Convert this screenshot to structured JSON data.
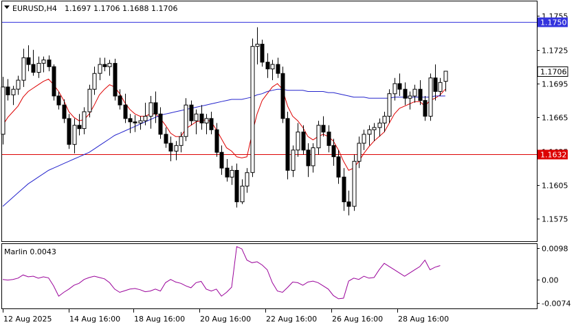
{
  "header": {
    "symbol": "EURUSD,H4",
    "open": "1.1697",
    "high": "1.1706",
    "low": "1.1688",
    "close": "1.1706",
    "menu_icon": "triangle-down-icon"
  },
  "chart_data": [
    {
      "type": "candlestick",
      "title": "EURUSD,H4",
      "ylim": [
        1.1555,
        1.1768
      ],
      "yticks": [
        "1.1755",
        "1.1725",
        "1.1695",
        "1.1665",
        "1.1635",
        "1.1605",
        "1.1575"
      ],
      "xticks": [
        "12 Aug 2025",
        "14 Aug 16:00",
        "18 Aug 16:00",
        "20 Aug 16:00",
        "22 Aug 16:00",
        "26 Aug 16:00",
        "28 Aug 16:00"
      ],
      "last_price": "1.1706",
      "levels": [
        {
          "value": 1.175,
          "label": "1.1750",
          "color": "#3333dd"
        },
        {
          "value": 1.1632,
          "label": "1.1632",
          "color": "#dd0000"
        }
      ],
      "candles": [
        [
          1.165,
          1.1701,
          1.1641,
          1.1692
        ],
        [
          1.1692,
          1.1699,
          1.168,
          1.1685
        ],
        [
          1.1685,
          1.1693,
          1.1676,
          1.169
        ],
        [
          1.169,
          1.1702,
          1.1685,
          1.1698
        ],
        [
          1.1698,
          1.1726,
          1.1692,
          1.1718
        ],
        [
          1.1718,
          1.1729,
          1.1706,
          1.1712
        ],
        [
          1.1712,
          1.1725,
          1.1702,
          1.1705
        ],
        [
          1.1705,
          1.1719,
          1.17,
          1.1713
        ],
        [
          1.1713,
          1.1719,
          1.1705,
          1.1716
        ],
        [
          1.1716,
          1.172,
          1.1706,
          1.171
        ],
        [
          1.171,
          1.1712,
          1.168,
          1.1684
        ],
        [
          1.1684,
          1.1688,
          1.1672,
          1.1676
        ],
        [
          1.1676,
          1.1681,
          1.166,
          1.1664
        ],
        [
          1.1664,
          1.1668,
          1.1637,
          1.1641
        ],
        [
          1.1641,
          1.1664,
          1.1633,
          1.1658
        ],
        [
          1.1658,
          1.1668,
          1.1649,
          1.1655
        ],
        [
          1.1655,
          1.1674,
          1.165,
          1.167
        ],
        [
          1.167,
          1.1694,
          1.1665,
          1.169
        ],
        [
          1.169,
          1.171,
          1.1685,
          1.1704
        ],
        [
          1.1704,
          1.1718,
          1.1698,
          1.1712
        ],
        [
          1.1712,
          1.1718,
          1.1706,
          1.171
        ],
        [
          1.171,
          1.1716,
          1.1702,
          1.1713
        ],
        [
          1.1713,
          1.1717,
          1.168,
          1.1684
        ],
        [
          1.1684,
          1.169,
          1.1672,
          1.1676
        ],
        [
          1.1676,
          1.1686,
          1.166,
          1.1664
        ],
        [
          1.1664,
          1.1668,
          1.1651,
          1.1661
        ],
        [
          1.1661,
          1.1667,
          1.1652,
          1.166
        ],
        [
          1.166,
          1.1666,
          1.1654,
          1.1662
        ],
        [
          1.1662,
          1.1678,
          1.1658,
          1.1666
        ],
        [
          1.1666,
          1.1684,
          1.1655,
          1.1678
        ],
        [
          1.1678,
          1.1688,
          1.166,
          1.1668
        ],
        [
          1.1668,
          1.1674,
          1.1646,
          1.165
        ],
        [
          1.165,
          1.1656,
          1.1638,
          1.1642
        ],
        [
          1.1642,
          1.1648,
          1.1626,
          1.1635
        ],
        [
          1.1635,
          1.1644,
          1.1627,
          1.164
        ],
        [
          1.164,
          1.1652,
          1.1634,
          1.1648
        ],
        [
          1.1648,
          1.1682,
          1.1644,
          1.1676
        ],
        [
          1.1676,
          1.168,
          1.1658,
          1.1662
        ],
        [
          1.1662,
          1.1672,
          1.165,
          1.1668
        ],
        [
          1.1668,
          1.1676,
          1.1654,
          1.166
        ],
        [
          1.166,
          1.1668,
          1.165,
          1.1664
        ],
        [
          1.1664,
          1.167,
          1.165,
          1.1654
        ],
        [
          1.1654,
          1.166,
          1.163,
          1.1634
        ],
        [
          1.1634,
          1.164,
          1.1614,
          1.162
        ],
        [
          1.162,
          1.1628,
          1.1608,
          1.1612
        ],
        [
          1.1612,
          1.1622,
          1.1605,
          1.1618
        ],
        [
          1.1618,
          1.1624,
          1.1585,
          1.159
        ],
        [
          1.159,
          1.161,
          1.1588,
          1.1604
        ],
        [
          1.1604,
          1.162,
          1.1598,
          1.1616
        ],
        [
          1.1616,
          1.1735,
          1.1612,
          1.1728
        ],
        [
          1.1728,
          1.1745,
          1.1712,
          1.173
        ],
        [
          1.173,
          1.1734,
          1.171,
          1.1714
        ],
        [
          1.1714,
          1.1722,
          1.17,
          1.1708
        ],
        [
          1.1708,
          1.1716,
          1.1698,
          1.1712
        ],
        [
          1.1712,
          1.1718,
          1.17,
          1.1704
        ],
        [
          1.1704,
          1.171,
          1.166,
          1.1664
        ],
        [
          1.1664,
          1.167,
          1.161,
          1.1618
        ],
        [
          1.1618,
          1.164,
          1.1612,
          1.1636
        ],
        [
          1.1636,
          1.166,
          1.163,
          1.1652
        ],
        [
          1.1652,
          1.1658,
          1.1632,
          1.1636
        ],
        [
          1.1636,
          1.1642,
          1.1612,
          1.1622
        ],
        [
          1.1622,
          1.1642,
          1.1616,
          1.1638
        ],
        [
          1.1638,
          1.1662,
          1.1632,
          1.1658
        ],
        [
          1.1658,
          1.1666,
          1.1648,
          1.1652
        ],
        [
          1.1652,
          1.1658,
          1.1634,
          1.164
        ],
        [
          1.164,
          1.1646,
          1.1622,
          1.163
        ],
        [
          1.163,
          1.1636,
          1.1606,
          1.1612
        ],
        [
          1.1612,
          1.162,
          1.1582,
          1.159
        ],
        [
          1.159,
          1.16,
          1.1578,
          1.1586
        ],
        [
          1.1586,
          1.1632,
          1.1582,
          1.1626
        ],
        [
          1.1626,
          1.1648,
          1.162,
          1.1642
        ],
        [
          1.1642,
          1.1654,
          1.1636,
          1.165
        ],
        [
          1.165,
          1.1658,
          1.164,
          1.1654
        ],
        [
          1.1654,
          1.166,
          1.1644,
          1.1656
        ],
        [
          1.1656,
          1.1664,
          1.1648,
          1.166
        ],
        [
          1.166,
          1.167,
          1.1652,
          1.1666
        ],
        [
          1.1666,
          1.169,
          1.166,
          1.1686
        ],
        [
          1.1686,
          1.17,
          1.168,
          1.1695
        ],
        [
          1.1695,
          1.1704,
          1.1684,
          1.169
        ],
        [
          1.169,
          1.1696,
          1.1676,
          1.1682
        ],
        [
          1.1682,
          1.1688,
          1.1672,
          1.1684
        ],
        [
          1.1684,
          1.1694,
          1.1678,
          1.169
        ],
        [
          1.169,
          1.1698,
          1.1676,
          1.168
        ],
        [
          1.168,
          1.1684,
          1.1662,
          1.1666
        ],
        [
          1.1666,
          1.1704,
          1.1662,
          1.17
        ],
        [
          1.17,
          1.1712,
          1.168,
          1.1688
        ],
        [
          1.1688,
          1.17,
          1.1684,
          1.1696
        ],
        [
          1.1697,
          1.1706,
          1.1688,
          1.1706
        ]
      ],
      "series": [
        {
          "color": "#dd0000",
          "values": [
            1.1658,
            1.1665,
            1.167,
            1.1675,
            1.1683,
            1.1688,
            1.1691,
            1.1694,
            1.1697,
            1.1699,
            1.1694,
            1.1688,
            1.168,
            1.167,
            1.1665,
            1.1662,
            1.1663,
            1.1668,
            1.1676,
            1.1685,
            1.169,
            1.1694,
            1.1692,
            1.1686,
            1.1678,
            1.1672,
            1.1668,
            1.1666,
            1.1666,
            1.1668,
            1.1668,
            1.1664,
            1.1658,
            1.1651,
            1.1648,
            1.1648,
            1.1655,
            1.1658,
            1.1661,
            1.1662,
            1.1663,
            1.1661,
            1.1654,
            1.1646,
            1.1638,
            1.1635,
            1.163,
            1.1629,
            1.163,
            1.165,
            1.1668,
            1.168,
            1.1686,
            1.1692,
            1.1695,
            1.169,
            1.1675,
            1.1666,
            1.1662,
            1.1656,
            1.1648,
            1.1645,
            1.1648,
            1.165,
            1.1648,
            1.1644,
            1.1636,
            1.1626,
            1.1618,
            1.162,
            1.1626,
            1.1633,
            1.1639,
            1.1644,
            1.1648,
            1.1652,
            1.166,
            1.1668,
            1.1673,
            1.1675,
            1.1677,
            1.1679,
            1.1679,
            1.1675,
            1.168,
            1.1682,
            1.1685,
            1.169
          ]
        },
        {
          "color": "#2222cc",
          "values": [
            1.1586,
            1.159,
            1.1594,
            1.1598,
            1.1602,
            1.1606,
            1.1609,
            1.1612,
            1.1615,
            1.1618,
            1.162,
            1.1622,
            1.1624,
            1.1626,
            1.1628,
            1.163,
            1.1632,
            1.1634,
            1.1637,
            1.164,
            1.1643,
            1.1646,
            1.1649,
            1.1651,
            1.1653,
            1.1655,
            1.1657,
            1.1659,
            1.1661,
            1.1663,
            1.1665,
            1.1667,
            1.1668,
            1.1669,
            1.167,
            1.1671,
            1.1672,
            1.1673,
            1.1674,
            1.1675,
            1.1676,
            1.1677,
            1.1678,
            1.1679,
            1.168,
            1.1681,
            1.1681,
            1.1681,
            1.1682,
            1.1683,
            1.1685,
            1.1686,
            1.1688,
            1.1689,
            1.169,
            1.169,
            1.1689,
            1.1689,
            1.1689,
            1.1689,
            1.1688,
            1.1688,
            1.1688,
            1.1688,
            1.1687,
            1.1687,
            1.1686,
            1.1685,
            1.1684,
            1.1683,
            1.1683,
            1.1683,
            1.1682,
            1.1682,
            1.1682,
            1.1682,
            1.1682,
            1.1683,
            1.1683,
            1.1683,
            1.1683,
            1.1683,
            1.1683,
            1.1683,
            1.1683,
            1.1684,
            1.1684,
            1.1684
          ]
        }
      ]
    },
    {
      "type": "line",
      "title": "Marlin 0.0043",
      "ylim": [
        -0.009,
        0.011
      ],
      "yticks": [
        "0.0098",
        "0.00",
        "-0.0074"
      ],
      "series": [
        {
          "color": "#990099",
          "values": [
            0.0,
            -0.0002,
            0.0,
            0.0004,
            0.0014,
            0.0008,
            0.001,
            0.0004,
            0.0008,
            0.0005,
            -0.002,
            -0.0052,
            -0.004,
            -0.003,
            -0.0018,
            -0.0012,
            0.0,
            0.0006,
            0.001,
            0.0006,
            0.0002,
            -0.001,
            -0.003,
            -0.004,
            -0.0035,
            -0.003,
            -0.0028,
            -0.0032,
            -0.0038,
            -0.0036,
            -0.003,
            -0.0036,
            -0.001,
            0.0,
            -0.0008,
            -0.0012,
            -0.002,
            -0.0026,
            -0.001,
            -0.0006,
            -0.003,
            -0.0036,
            -0.003,
            -0.0052,
            -0.004,
            -0.0024,
            0.0102,
            0.0095,
            0.006,
            0.0052,
            0.0055,
            0.0045,
            0.003,
            -0.001,
            -0.0036,
            -0.004,
            -0.0025,
            -0.0008,
            -0.001,
            -0.0018,
            -0.0008,
            -0.0005,
            -0.001,
            -0.002,
            -0.003,
            -0.005,
            -0.006,
            -0.0058,
            -0.0005,
            0.0004,
            0.0,
            0.001,
            0.0004,
            0.0006,
            0.003,
            0.005,
            0.004,
            0.003,
            0.002,
            0.001,
            0.002,
            0.003,
            0.004,
            0.006,
            0.003,
            0.0038,
            0.0043
          ]
        }
      ]
    }
  ],
  "colors": {
    "bull_fill": "#ffffff",
    "bear_fill": "#000000",
    "candle_outline": "#000000",
    "axis": "#000000"
  }
}
